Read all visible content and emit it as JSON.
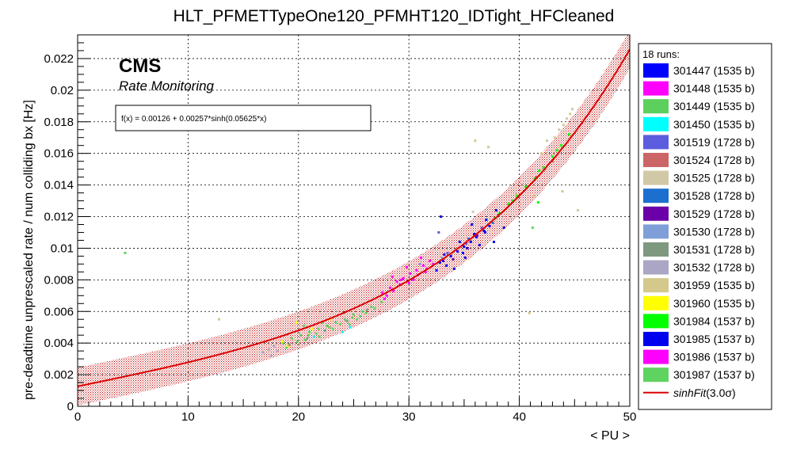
{
  "title": "HLT_PFMETTypeOne120_PFMHT120_IDTight_HFCleaned",
  "cms_label": "CMS",
  "cms_sublabel": "Rate Monitoring",
  "fit_formula": "f(x) = 0.00126 + 0.00257*sinh(0.05625*x)",
  "legend": {
    "header": "18 runs:",
    "entries": [
      {
        "label": "301447 (1535 b)",
        "color": "#0000ff"
      },
      {
        "label": "301448 (1535 b)",
        "color": "#ff00ff"
      },
      {
        "label": "301449 (1535 b)",
        "color": "#5ccf5c"
      },
      {
        "label": "301450 (1535 b)",
        "color": "#00ffff"
      },
      {
        "label": "301519 (1728 b)",
        "color": "#5c5cde"
      },
      {
        "label": "301524 (1728 b)",
        "color": "#cc6666"
      },
      {
        "label": "301525 (1728 b)",
        "color": "#d1c9a6"
      },
      {
        "label": "301528 (1728 b)",
        "color": "#1c6fcf"
      },
      {
        "label": "301529 (1728 b)",
        "color": "#6b00a8"
      },
      {
        "label": "301530 (1728 b)",
        "color": "#7f9fd9"
      },
      {
        "label": "301531 (1728 b)",
        "color": "#7f9980"
      },
      {
        "label": "301532 (1728 b)",
        "color": "#aaa6c4"
      },
      {
        "label": "301959 (1535 b)",
        "color": "#d4c98a"
      },
      {
        "label": "301960 (1535 b)",
        "color": "#ffff00"
      },
      {
        "label": "301984 (1537 b)",
        "color": "#00ff00"
      },
      {
        "label": "301985 (1537 b)",
        "color": "#0000ee"
      },
      {
        "label": "301986 (1537 b)",
        "color": "#ff00ff"
      },
      {
        "label": "301987 (1537 b)",
        "color": "#5fd35f"
      }
    ],
    "fit_entry": {
      "label": "sinhFit",
      "suffix": "(3.0σ)",
      "color": "#dd0000"
    }
  },
  "chart_data": {
    "type": "scatter",
    "xlabel": "< PU >",
    "ylabel": "pre-deadtime unprescaled rate / num colliding bx [Hz]",
    "xlim": [
      0,
      50
    ],
    "ylim": [
      0,
      0.0235
    ],
    "x_ticks": [
      0,
      10,
      20,
      30,
      40,
      50
    ],
    "y_ticks": [
      0,
      0.002,
      0.004,
      0.006,
      0.008,
      0.01,
      0.012,
      0.014,
      0.016,
      0.018,
      0.02,
      0.022
    ],
    "y_tick_labels": [
      "0",
      "0.002",
      "0.004",
      "0.006",
      "0.008",
      "0.01",
      "0.012",
      "0.014",
      "0.016",
      "0.018",
      "0.02",
      "0.022"
    ],
    "grid": true,
    "fit": {
      "a": 0.00126,
      "b": 0.00257,
      "c": 0.05625,
      "band_sigma": 3.0,
      "band_halfwidth": 0.0012,
      "color": "#dd0000"
    },
    "series": [
      {
        "name": "301447 (1535 b)",
        "color": "#0000ff",
        "points": [
          [
            32.5,
            0.0086
          ],
          [
            33.1,
            0.0092
          ],
          [
            33.8,
            0.0095
          ],
          [
            34.4,
            0.0098
          ],
          [
            35.0,
            0.0101
          ],
          [
            35.6,
            0.0104
          ],
          [
            36.1,
            0.0107
          ],
          [
            36.8,
            0.0111
          ],
          [
            37.3,
            0.0114
          ],
          [
            33.4,
            0.0089
          ],
          [
            34.9,
            0.0097
          ],
          [
            35.9,
            0.0109
          ],
          [
            32.8,
            0.0091
          ],
          [
            36.4,
            0.0102
          ],
          [
            37.0,
            0.0118
          ]
        ]
      },
      {
        "name": "301448 (1535 b)",
        "color": "#ff00ff",
        "points": [
          [
            27.6,
            0.0072
          ],
          [
            28.3,
            0.0075
          ],
          [
            28.9,
            0.0079
          ],
          [
            29.5,
            0.0081
          ],
          [
            30.1,
            0.0084
          ],
          [
            30.7,
            0.0086
          ],
          [
            31.3,
            0.0089
          ],
          [
            31.9,
            0.0092
          ],
          [
            29.2,
            0.0077
          ],
          [
            30.4,
            0.008
          ],
          [
            31.6,
            0.0087
          ],
          [
            28.0,
            0.007
          ]
        ]
      },
      {
        "name": "301449 (1535 b)",
        "color": "#5ccf5c",
        "points": [
          [
            18.6,
            0.004
          ],
          [
            19.4,
            0.0043
          ],
          [
            20.2,
            0.0045
          ],
          [
            21.0,
            0.0047
          ],
          [
            21.8,
            0.0049
          ],
          [
            22.6,
            0.0051
          ],
          [
            23.4,
            0.0053
          ],
          [
            24.2,
            0.0055
          ],
          [
            25.0,
            0.0058
          ],
          [
            25.8,
            0.006
          ],
          [
            26.6,
            0.0063
          ],
          [
            20.6,
            0.0042
          ],
          [
            22.2,
            0.0053
          ],
          [
            24.6,
            0.0052
          ]
        ]
      },
      {
        "name": "301450 (1535 b)",
        "color": "#00ffff",
        "points": [
          [
            24.0,
            0.0047
          ],
          [
            24.7,
            0.005
          ],
          [
            21.4,
            0.0044
          ]
        ]
      },
      {
        "name": "301519 (1728 b)",
        "color": "#5c5cde",
        "points": [
          [
            33.5,
            0.0097
          ],
          [
            35.2,
            0.0103
          ],
          [
            36.6,
            0.0113
          ],
          [
            38.1,
            0.0121
          ],
          [
            32.7,
            0.011
          ]
        ]
      },
      {
        "name": "301524 (1728 b)",
        "color": "#cc6666",
        "points": [
          [
            41.5,
            0.0145
          ],
          [
            42.3,
            0.015
          ],
          [
            43.0,
            0.0155
          ]
        ]
      },
      {
        "name": "301525 (1728 b)",
        "color": "#d1c9a6",
        "points": [
          [
            42.5,
            0.0168
          ],
          [
            43.6,
            0.0175
          ],
          [
            44.3,
            0.0182
          ],
          [
            44.8,
            0.0188
          ],
          [
            35.8,
            0.0123
          ],
          [
            45.3,
            0.0124
          ]
        ]
      },
      {
        "name": "301528 (1728 b)",
        "color": "#1c6fcf",
        "points": [
          [
            35.4,
            0.0106
          ],
          [
            37.6,
            0.0116
          ]
        ]
      },
      {
        "name": "301529 (1728 b)",
        "color": "#6b00a8",
        "points": [
          [
            34.0,
            0.0093
          ],
          [
            36.2,
            0.0108
          ]
        ]
      },
      {
        "name": "301530 (1728 b)",
        "color": "#7f9fd9",
        "points": [
          [
            31.0,
            0.009
          ],
          [
            33.0,
            0.0094
          ]
        ]
      },
      {
        "name": "301531 (1728 b)",
        "color": "#7f9980",
        "points": [
          [
            19.2,
            0.0039
          ],
          [
            20.8,
            0.0043
          ],
          [
            22.4,
            0.0048
          ],
          [
            24.4,
            0.0054
          ],
          [
            26.2,
            0.0061
          ]
        ]
      },
      {
        "name": "301532 (1728 b)",
        "color": "#aaa6c4",
        "points": [
          [
            16.8,
            0.0034
          ],
          [
            17.3,
            0.0036
          ],
          [
            17.8,
            0.0038
          ],
          [
            17.5,
            0.0032
          ],
          [
            18.1,
            0.0035
          ]
        ]
      },
      {
        "name": "301959 (1535 b)",
        "color": "#d4c98a",
        "points": [
          [
            42.0,
            0.016
          ],
          [
            43.2,
            0.017
          ],
          [
            44.0,
            0.0178
          ],
          [
            44.6,
            0.0185
          ],
          [
            39.7,
            0.0134
          ],
          [
            36.0,
            0.0168
          ],
          [
            37.2,
            0.0164
          ],
          [
            43.9,
            0.0136
          ],
          [
            41.3,
            0.0133
          ],
          [
            40.9,
            0.0059
          ],
          [
            12.8,
            0.0055
          ]
        ]
      },
      {
        "name": "301960 (1535 b)",
        "color": "#ffff00",
        "points": [
          [
            19.8,
            0.0053
          ],
          [
            18.5,
            0.0041
          ],
          [
            19.0,
            0.0038
          ],
          [
            21.2,
            0.0049
          ],
          [
            22.9,
            0.0055
          ]
        ]
      },
      {
        "name": "301984 (1537 b)",
        "color": "#00ff00",
        "points": [
          [
            38.2,
            0.0122
          ],
          [
            39.0,
            0.0128
          ],
          [
            39.8,
            0.0133
          ],
          [
            40.6,
            0.0139
          ],
          [
            41.4,
            0.0144
          ],
          [
            42.2,
            0.0151
          ],
          [
            43.0,
            0.0158
          ],
          [
            43.8,
            0.0165
          ],
          [
            44.5,
            0.0172
          ],
          [
            39.4,
            0.013
          ],
          [
            41.8,
            0.0149
          ],
          [
            43.4,
            0.0162
          ],
          [
            37.8,
            0.0119
          ],
          [
            41.7,
            0.0129
          ]
        ]
      },
      {
        "name": "301985 (1537 b)",
        "color": "#0000ee",
        "points": [
          [
            33.2,
            0.0096
          ],
          [
            34.6,
            0.0104
          ],
          [
            35.3,
            0.01
          ],
          [
            36.9,
            0.011
          ],
          [
            37.9,
            0.0124
          ],
          [
            38.6,
            0.0113
          ],
          [
            34.1,
            0.0087
          ],
          [
            35.7,
            0.0115
          ],
          [
            32.9,
            0.012
          ],
          [
            37.7,
            0.0104
          ],
          [
            35.1,
            0.0094
          ]
        ]
      },
      {
        "name": "301986 (1537 b)",
        "color": "#ff00ff",
        "points": [
          [
            27.8,
            0.0068
          ],
          [
            28.6,
            0.0073
          ],
          [
            29.3,
            0.008
          ],
          [
            30.0,
            0.0078
          ],
          [
            30.8,
            0.0083
          ],
          [
            31.5,
            0.0085
          ],
          [
            32.2,
            0.009
          ],
          [
            29.8,
            0.0088
          ],
          [
            31.1,
            0.0094
          ],
          [
            28.5,
            0.0082
          ]
        ]
      },
      {
        "name": "301987 (1537 b)",
        "color": "#5fd35f",
        "points": [
          [
            18.9,
            0.0037
          ],
          [
            19.9,
            0.0041
          ],
          [
            20.9,
            0.0045
          ],
          [
            21.6,
            0.0046
          ],
          [
            22.8,
            0.005
          ],
          [
            23.8,
            0.0052
          ],
          [
            24.9,
            0.0056
          ],
          [
            25.6,
            0.0057
          ],
          [
            26.9,
            0.0062
          ],
          [
            27.5,
            0.0066
          ],
          [
            23.1,
            0.0049
          ],
          [
            25.3,
            0.0055
          ],
          [
            21.9,
            0.0044
          ],
          [
            26.1,
            0.0059
          ],
          [
            4.3,
            0.0097
          ],
          [
            41.2,
            0.0113
          ],
          [
            20.5,
            0.0051
          ],
          [
            24.1,
            0.0059
          ]
        ]
      }
    ]
  }
}
